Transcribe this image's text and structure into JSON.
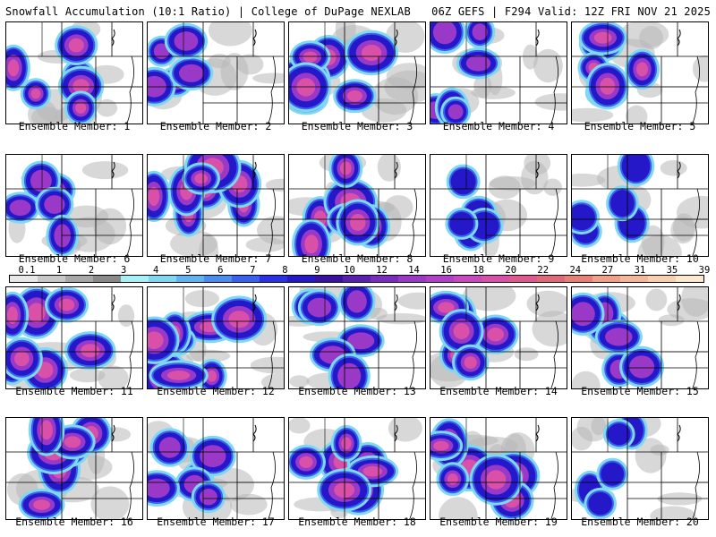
{
  "header": {
    "title_left": "Snowfall Accumulation (10:1 Ratio) | College of DuPage NEXLAB",
    "title_right": "06Z GEFS | F294 Valid: 12Z FRI NOV 21 2025"
  },
  "colorbar": {
    "labels": [
      "0.1",
      "1",
      "2",
      "3",
      "4",
      "5",
      "6",
      "7",
      "8",
      "9",
      "10",
      "12",
      "14",
      "16",
      "18",
      "20",
      "22",
      "24",
      "27",
      "31",
      "35",
      "39"
    ],
    "colors": [
      "#e8e8e8",
      "#c8c8c8",
      "#a8a8a8",
      "#8a8a8a",
      "#a8f0f8",
      "#7fd8f0",
      "#5fb4f0",
      "#4a8cf0",
      "#3a60f0",
      "#2a30e8",
      "#2418c8",
      "#3a10a0",
      "#5a20b0",
      "#7a2cc0",
      "#9a38c8",
      "#b040c8",
      "#c848c0",
      "#d850a8",
      "#e05890",
      "#e06878",
      "#e88078",
      "#f0a088",
      "#f4b898",
      "#f8d0b0",
      "#fce8cc"
    ]
  },
  "members": [
    {
      "label": "Ensemble Member: 1",
      "intensity": 0.6
    },
    {
      "label": "Ensemble Member: 2",
      "intensity": 0.45
    },
    {
      "label": "Ensemble Member: 3",
      "intensity": 0.85
    },
    {
      "label": "Ensemble Member: 4",
      "intensity": 0.5
    },
    {
      "label": "Ensemble Member: 5",
      "intensity": 0.6
    },
    {
      "label": "Ensemble Member: 6",
      "intensity": 0.45
    },
    {
      "label": "Ensemble Member: 7",
      "intensity": 0.9
    },
    {
      "label": "Ensemble Member: 8",
      "intensity": 0.75
    },
    {
      "label": "Ensemble Member: 9",
      "intensity": 0.3
    },
    {
      "label": "Ensemble Member: 10",
      "intensity": 0.4
    },
    {
      "label": "Ensemble Member: 11",
      "intensity": 0.8
    },
    {
      "label": "Ensemble Member: 12",
      "intensity": 0.9
    },
    {
      "label": "Ensemble Member: 13",
      "intensity": 0.55
    },
    {
      "label": "Ensemble Member: 14",
      "intensity": 0.6
    },
    {
      "label": "Ensemble Member: 15",
      "intensity": 0.55
    },
    {
      "label": "Ensemble Member: 16",
      "intensity": 0.8
    },
    {
      "label": "Ensemble Member: 17",
      "intensity": 0.5
    },
    {
      "label": "Ensemble Member: 18",
      "intensity": 0.75
    },
    {
      "label": "Ensemble Member: 19",
      "intensity": 0.8
    },
    {
      "label": "Ensemble Member: 20",
      "intensity": 0.3
    }
  ]
}
